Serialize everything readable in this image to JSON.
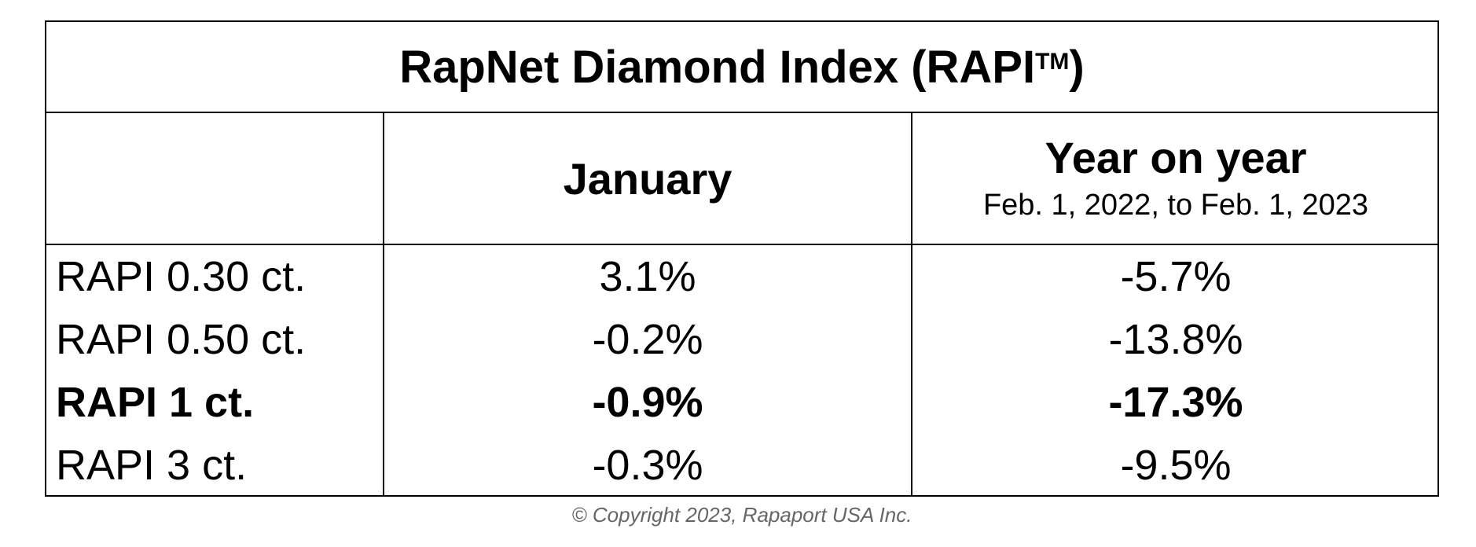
{
  "table": {
    "title": "RapNet Diamond Index (RAPI",
    "title_tm": "TM",
    "title_close": ")",
    "header": {
      "january": "January",
      "yoy_main": "Year on year",
      "yoy_sub": "Feb. 1, 2022, to Feb. 1, 2023"
    },
    "rows": [
      {
        "label": "RAPI 0.30 ct.",
        "january": "3.1%",
        "yoy": "-5.7%",
        "bold": false
      },
      {
        "label": "RAPI 0.50 ct.",
        "january": "-0.2%",
        "yoy": "-13.8%",
        "bold": false
      },
      {
        "label": "RAPI 1 ct.",
        "january": "-0.9%",
        "yoy": "-17.3%",
        "bold": true
      },
      {
        "label": "RAPI 3 ct.",
        "january": "-0.3%",
        "yoy": "-9.5%",
        "bold": false
      }
    ]
  },
  "copyright": "© Copyright 2023, Rapaport USA Inc."
}
